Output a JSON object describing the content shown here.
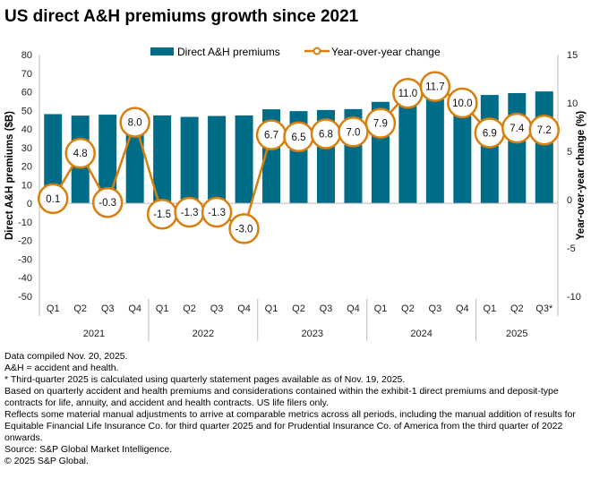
{
  "title": "US direct A&H premiums growth since 2021",
  "chart_data": {
    "type": "bar+line",
    "title": "US direct A&H premiums growth since 2021",
    "categories": [
      "Q1",
      "Q2",
      "Q3",
      "Q4",
      "Q1",
      "Q2",
      "Q3",
      "Q4",
      "Q1",
      "Q2",
      "Q3",
      "Q4",
      "Q1",
      "Q2",
      "Q3",
      "Q4",
      "Q1",
      "Q2",
      "Q3*"
    ],
    "years": [
      "2021",
      "2022",
      "2023",
      "2024",
      "2025"
    ],
    "series": [
      {
        "name": "Direct A&H premiums",
        "type": "bar",
        "axis": "left",
        "color": "#006d88",
        "values": [
          48.0,
          47.2,
          47.7,
          47.5,
          47.3,
          46.5,
          47.0,
          47.3,
          50.6,
          49.6,
          50.2,
          50.7,
          54.6,
          57.0,
          58.5,
          56.0,
          58.3,
          59.3,
          60.2
        ]
      },
      {
        "name": "Year-over-year change",
        "type": "line",
        "axis": "right",
        "color": "#d97f0e",
        "values": [
          0.1,
          4.8,
          -0.3,
          8.0,
          -1.5,
          -1.3,
          -1.3,
          -3.0,
          6.7,
          6.5,
          6.8,
          7.0,
          7.9,
          11.0,
          11.7,
          10.0,
          6.9,
          7.4,
          7.2
        ],
        "labels": [
          "0.1",
          "4.8",
          "-0.3",
          "8.0",
          "-1.5",
          "-1.3",
          "-1.3",
          "-3.0",
          "6.7",
          "6.5",
          "6.8",
          "7.0",
          "7.9",
          "11.0",
          "11.7",
          "10.0",
          "6.9",
          "7.4",
          "7.2"
        ]
      }
    ],
    "ylabel": "Direct A&H premiums ($B)",
    "y2label": "Year-over-year change (%)",
    "ylim": [
      -50,
      80
    ],
    "yticks": [
      "80",
      "70",
      "60",
      "50",
      "40",
      "30",
      "20",
      "10",
      "0",
      "-10",
      "-20",
      "-30",
      "-40",
      "-50"
    ],
    "y2lim": [
      -10,
      15
    ],
    "y2ticks": [
      "15",
      "10",
      "5",
      "0",
      "-5",
      "-10"
    ],
    "legend": "top",
    "grid": false
  },
  "notes": [
    "Data compiled Nov. 20, 2025.",
    "A&H = accident and health.",
    "* Third-quarter 2025 is calculated using quarterly statement pages available as of Nov. 19, 2025.",
    "Based on quarterly accident and health premiums and considerations contained within the exhibit-1 direct premiums and deposit-type contracts for life, annuity, and accident and health contracts. US life filers only.",
    "Reflects some material manual adjustments to arrive at comparable metrics across all periods, including the manual addition of results for Equitable Financial Life Insurance Co. for third quarter 2025 and for Prudential Insurance Co. of America from the third quarter of 2022 onwards.",
    "Source: S&P Global Market Intelligence.",
    "© 2025 S&P Global."
  ]
}
